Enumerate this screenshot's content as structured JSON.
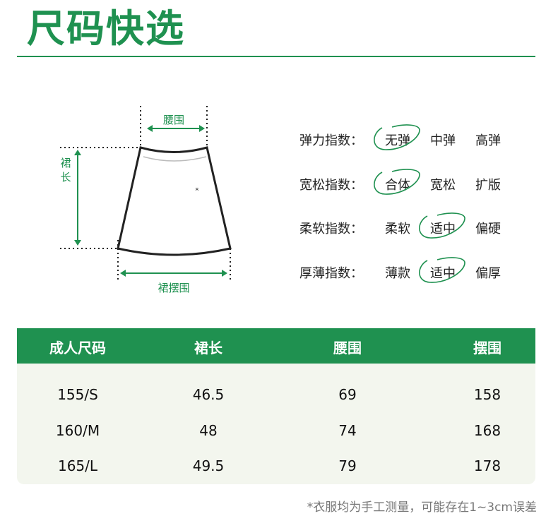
{
  "title": "尺码快选",
  "diagram": {
    "waist_label": "腰围",
    "length_label": "裙长",
    "hem_label": "裙摆围"
  },
  "properties": [
    {
      "label": "弹力指数：",
      "options": [
        "无弹",
        "中弹",
        "高弹"
      ],
      "selected": 0
    },
    {
      "label": "宽松指数：",
      "options": [
        "合体",
        "宽松",
        "扩版"
      ],
      "selected": 0
    },
    {
      "label": "柔软指数：",
      "options": [
        "柔软",
        "适中",
        "偏硬"
      ],
      "selected": 1
    },
    {
      "label": "厚薄指数：",
      "options": [
        "薄款",
        "适中",
        "偏厚"
      ],
      "selected": 1
    }
  ],
  "table": {
    "headers": [
      "成人尺码",
      "裙长",
      "腰围",
      "摆围"
    ],
    "rows": [
      [
        "155/S",
        "46.5",
        "69",
        "158"
      ],
      [
        "160/M",
        "48",
        "74",
        "168"
      ],
      [
        "165/L",
        "49.5",
        "79",
        "178"
      ]
    ]
  },
  "note": "*衣服均为手工测量，可能存在1~3cm误差",
  "colors": {
    "accent": "#1f9150",
    "table_body": "#f3f6ee"
  }
}
